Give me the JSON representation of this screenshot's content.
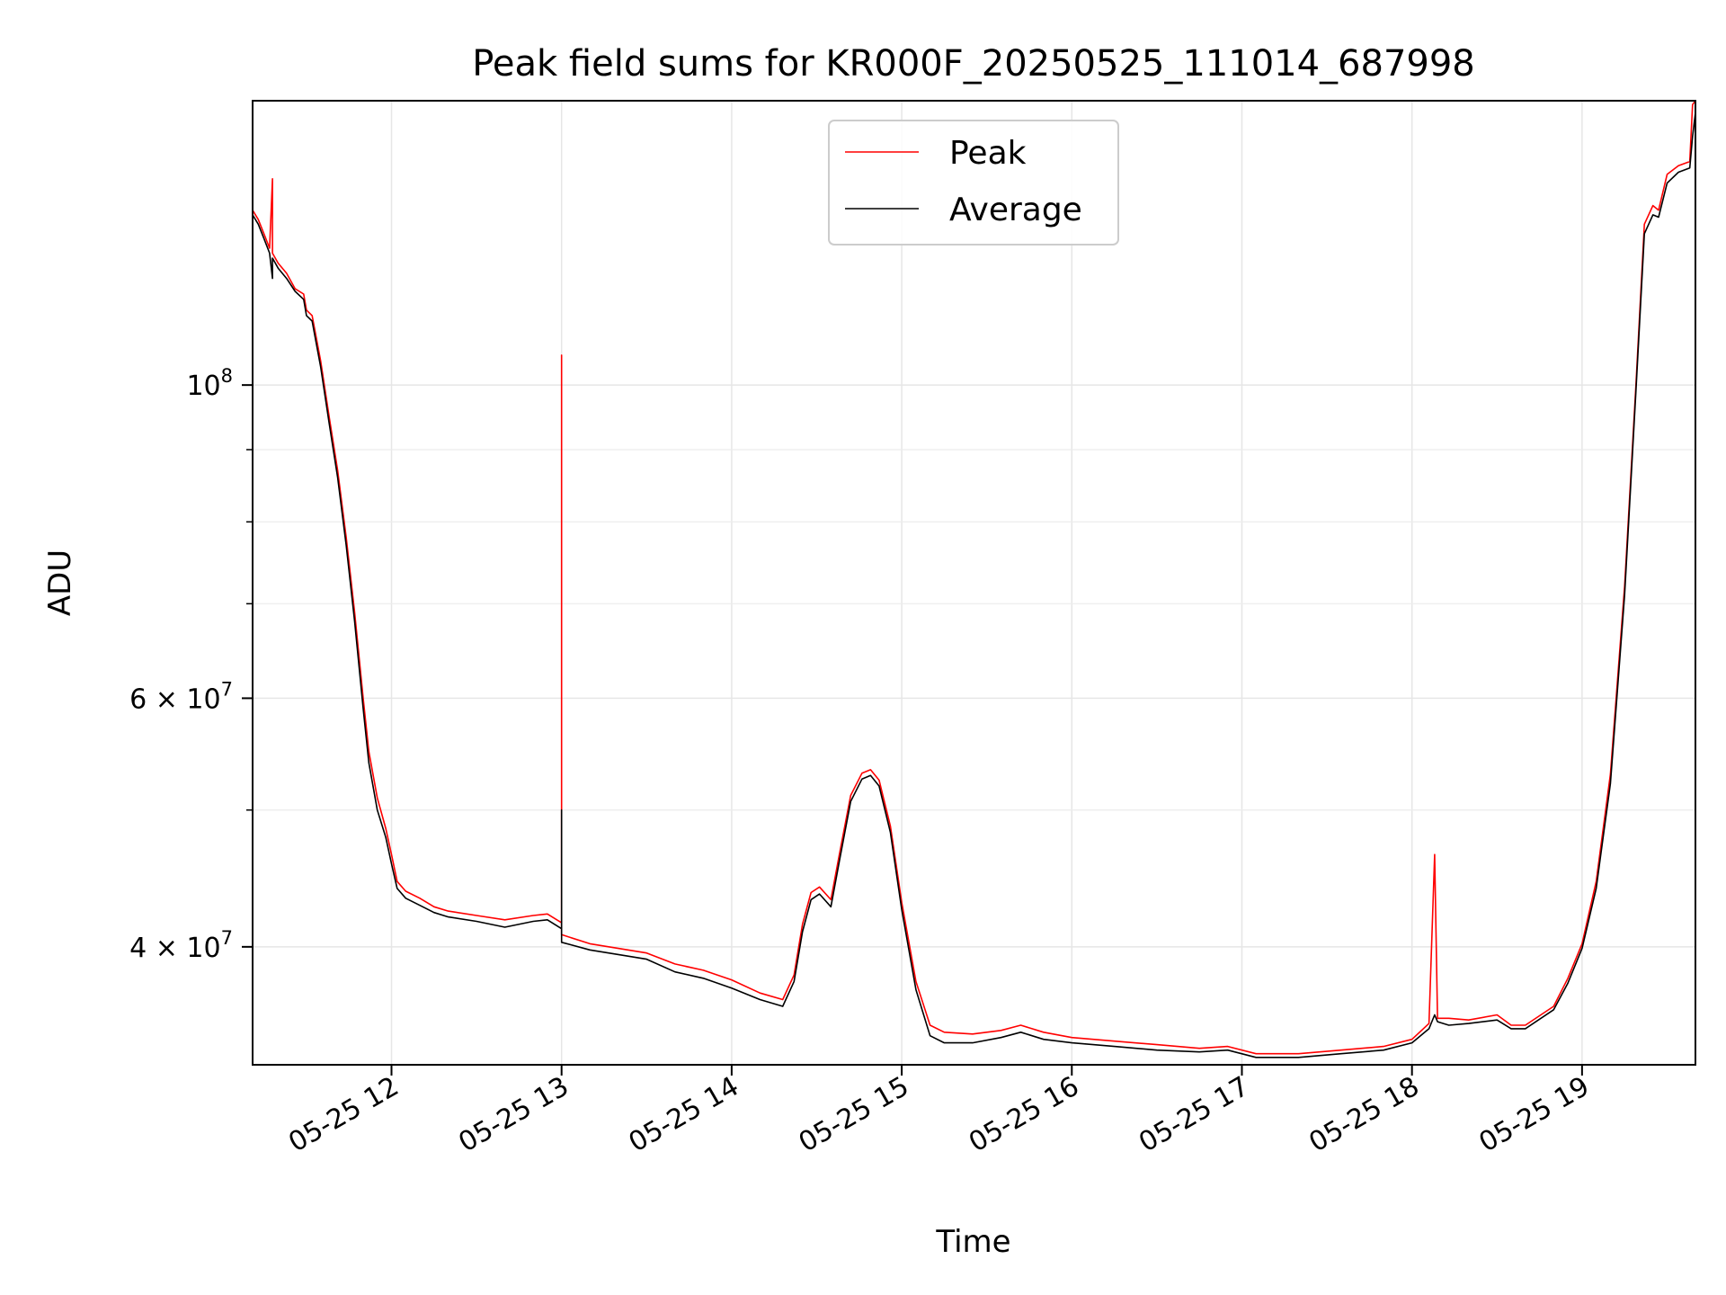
{
  "chart_data": {
    "type": "line",
    "title": "Peak field sums for KR000F_20250525_111014_687998",
    "xlabel": "Time",
    "ylabel": "ADU",
    "y_scale": "log",
    "xlim": [
      "2025-05-25T11:11",
      "2025-05-25T19:40"
    ],
    "ylim": [
      33000000,
      159000000
    ],
    "grid": true,
    "legend_position": "top-center",
    "x_ticks": [
      {
        "time": "2025-05-25T12:00",
        "label": "05-25 12"
      },
      {
        "time": "2025-05-25T13:00",
        "label": "05-25 13"
      },
      {
        "time": "2025-05-25T14:00",
        "label": "05-25 14"
      },
      {
        "time": "2025-05-25T15:00",
        "label": "05-25 15"
      },
      {
        "time": "2025-05-25T16:00",
        "label": "05-25 16"
      },
      {
        "time": "2025-05-25T17:00",
        "label": "05-25 17"
      },
      {
        "time": "2025-05-25T18:00",
        "label": "05-25 18"
      },
      {
        "time": "2025-05-25T19:00",
        "label": "05-25 19"
      }
    ],
    "y_major_ticks": [
      {
        "value": 40000000,
        "base": "4 × 10",
        "exp": "7"
      },
      {
        "value": 60000000,
        "base": "6 × 10",
        "exp": "7"
      },
      {
        "value": 100000000,
        "base": "10",
        "exp": "8"
      }
    ],
    "y_minor_ticks": [
      50000000,
      70000000,
      80000000,
      90000000
    ],
    "series": [
      {
        "name": "Peak",
        "color": "#ff0000",
        "points": [
          [
            "2025-05-25T11:11",
            133000000
          ],
          [
            "2025-05-25T11:13",
            131000000
          ],
          [
            "2025-05-25T11:15",
            128000000
          ],
          [
            "2025-05-25T11:17",
            125000000
          ],
          [
            "2025-05-25T11:18",
            140000000
          ],
          [
            "2025-05-25T11:18",
            124000000
          ],
          [
            "2025-05-25T11:20",
            122000000
          ],
          [
            "2025-05-25T11:23",
            120000000
          ],
          [
            "2025-05-25T11:26",
            117000000
          ],
          [
            "2025-05-25T11:29",
            116000000
          ],
          [
            "2025-05-25T11:30",
            113000000
          ],
          [
            "2025-05-25T11:32",
            112000000
          ],
          [
            "2025-05-25T11:35",
            104000000
          ],
          [
            "2025-05-25T11:38",
            95000000
          ],
          [
            "2025-05-25T11:41",
            87000000
          ],
          [
            "2025-05-25T11:44",
            78000000
          ],
          [
            "2025-05-25T11:47",
            69000000
          ],
          [
            "2025-05-25T11:50",
            60000000
          ],
          [
            "2025-05-25T11:52",
            55000000
          ],
          [
            "2025-05-25T11:55",
            51000000
          ],
          [
            "2025-05-25T11:58",
            48500000
          ],
          [
            "2025-05-25T12:00",
            46500000
          ],
          [
            "2025-05-25T12:02",
            44500000
          ],
          [
            "2025-05-25T12:05",
            43800000
          ],
          [
            "2025-05-25T12:10",
            43300000
          ],
          [
            "2025-05-25T12:15",
            42700000
          ],
          [
            "2025-05-25T12:20",
            42400000
          ],
          [
            "2025-05-25T12:30",
            42100000
          ],
          [
            "2025-05-25T12:40",
            41800000
          ],
          [
            "2025-05-25T12:50",
            42100000
          ],
          [
            "2025-05-25T12:55",
            42200000
          ],
          [
            "2025-05-25T13:00",
            41600000
          ],
          [
            "2025-05-25T13:00",
            105000000
          ],
          [
            "2025-05-25T13:00",
            40800000
          ],
          [
            "2025-05-25T13:10",
            40200000
          ],
          [
            "2025-05-25T13:20",
            39900000
          ],
          [
            "2025-05-25T13:30",
            39600000
          ],
          [
            "2025-05-25T13:40",
            38900000
          ],
          [
            "2025-05-25T13:50",
            38500000
          ],
          [
            "2025-05-25T14:00",
            37900000
          ],
          [
            "2025-05-25T14:10",
            37100000
          ],
          [
            "2025-05-25T14:18",
            36700000
          ],
          [
            "2025-05-25T14:22",
            38200000
          ],
          [
            "2025-05-25T14:25",
            41500000
          ],
          [
            "2025-05-25T14:28",
            43700000
          ],
          [
            "2025-05-25T14:31",
            44100000
          ],
          [
            "2025-05-25T14:35",
            43200000
          ],
          [
            "2025-05-25T14:38",
            46500000
          ],
          [
            "2025-05-25T14:42",
            51200000
          ],
          [
            "2025-05-25T14:46",
            53100000
          ],
          [
            "2025-05-25T14:49",
            53400000
          ],
          [
            "2025-05-25T14:52",
            52500000
          ],
          [
            "2025-05-25T14:56",
            48700000
          ],
          [
            "2025-05-25T15:00",
            43000000
          ],
          [
            "2025-05-25T15:05",
            37800000
          ],
          [
            "2025-05-25T15:10",
            35200000
          ],
          [
            "2025-05-25T15:15",
            34800000
          ],
          [
            "2025-05-25T15:25",
            34700000
          ],
          [
            "2025-05-25T15:35",
            34900000
          ],
          [
            "2025-05-25T15:42",
            35200000
          ],
          [
            "2025-05-25T15:50",
            34800000
          ],
          [
            "2025-05-25T16:00",
            34500000
          ],
          [
            "2025-05-25T16:15",
            34300000
          ],
          [
            "2025-05-25T16:30",
            34100000
          ],
          [
            "2025-05-25T16:45",
            33900000
          ],
          [
            "2025-05-25T16:55",
            34000000
          ],
          [
            "2025-05-25T17:05",
            33600000
          ],
          [
            "2025-05-25T17:20",
            33600000
          ],
          [
            "2025-05-25T17:35",
            33800000
          ],
          [
            "2025-05-25T17:50",
            34000000
          ],
          [
            "2025-05-25T18:00",
            34400000
          ],
          [
            "2025-05-25T18:06",
            35300000
          ],
          [
            "2025-05-25T18:08",
            46500000
          ],
          [
            "2025-05-25T18:09",
            35600000
          ],
          [
            "2025-05-25T18:13",
            35600000
          ],
          [
            "2025-05-25T18:20",
            35500000
          ],
          [
            "2025-05-25T18:30",
            35800000
          ],
          [
            "2025-05-25T18:35",
            35200000
          ],
          [
            "2025-05-25T18:40",
            35200000
          ],
          [
            "2025-05-25T18:50",
            36300000
          ],
          [
            "2025-05-25T18:55",
            38000000
          ],
          [
            "2025-05-25T19:00",
            40200000
          ],
          [
            "2025-05-25T19:05",
            44500000
          ],
          [
            "2025-05-25T19:10",
            53000000
          ],
          [
            "2025-05-25T19:15",
            72000000
          ],
          [
            "2025-05-25T19:19",
            100000000
          ],
          [
            "2025-05-25T19:22",
            130000000
          ],
          [
            "2025-05-25T19:25",
            134000000
          ],
          [
            "2025-05-25T19:27",
            133000000
          ],
          [
            "2025-05-25T19:30",
            141000000
          ],
          [
            "2025-05-25T19:34",
            143000000
          ],
          [
            "2025-05-25T19:38",
            144000000
          ],
          [
            "2025-05-25T19:39",
            158000000
          ],
          [
            "2025-05-25T19:40",
            159000000
          ]
        ]
      },
      {
        "name": "Average",
        "color": "#000000",
        "points": [
          [
            "2025-05-25T11:11",
            132000000
          ],
          [
            "2025-05-25T11:13",
            130000000
          ],
          [
            "2025-05-25T11:15",
            127000000
          ],
          [
            "2025-05-25T11:17",
            124000000
          ],
          [
            "2025-05-25T11:18",
            119000000
          ],
          [
            "2025-05-25T11:18",
            123000000
          ],
          [
            "2025-05-25T11:20",
            121000000
          ],
          [
            "2025-05-25T11:23",
            119000000
          ],
          [
            "2025-05-25T11:26",
            116500000
          ],
          [
            "2025-05-25T11:29",
            115000000
          ],
          [
            "2025-05-25T11:30",
            112000000
          ],
          [
            "2025-05-25T11:32",
            111000000
          ],
          [
            "2025-05-25T11:35",
            103000000
          ],
          [
            "2025-05-25T11:38",
            94000000
          ],
          [
            "2025-05-25T11:41",
            86000000
          ],
          [
            "2025-05-25T11:44",
            77000000
          ],
          [
            "2025-05-25T11:47",
            68000000
          ],
          [
            "2025-05-25T11:50",
            59000000
          ],
          [
            "2025-05-25T11:52",
            54000000
          ],
          [
            "2025-05-25T11:55",
            50000000
          ],
          [
            "2025-05-25T11:58",
            47800000
          ],
          [
            "2025-05-25T12:00",
            45800000
          ],
          [
            "2025-05-25T12:02",
            44000000
          ],
          [
            "2025-05-25T12:05",
            43300000
          ],
          [
            "2025-05-25T12:10",
            42800000
          ],
          [
            "2025-05-25T12:15",
            42300000
          ],
          [
            "2025-05-25T12:20",
            42000000
          ],
          [
            "2025-05-25T12:30",
            41700000
          ],
          [
            "2025-05-25T12:40",
            41300000
          ],
          [
            "2025-05-25T12:50",
            41700000
          ],
          [
            "2025-05-25T12:55",
            41800000
          ],
          [
            "2025-05-25T13:00",
            41200000
          ],
          [
            "2025-05-25T13:00",
            50000000
          ],
          [
            "2025-05-25T13:00",
            40300000
          ],
          [
            "2025-05-25T13:10",
            39800000
          ],
          [
            "2025-05-25T13:20",
            39500000
          ],
          [
            "2025-05-25T13:30",
            39200000
          ],
          [
            "2025-05-25T13:40",
            38400000
          ],
          [
            "2025-05-25T13:50",
            38000000
          ],
          [
            "2025-05-25T14:00",
            37400000
          ],
          [
            "2025-05-25T14:10",
            36700000
          ],
          [
            "2025-05-25T14:18",
            36300000
          ],
          [
            "2025-05-25T14:22",
            37800000
          ],
          [
            "2025-05-25T14:25",
            41000000
          ],
          [
            "2025-05-25T14:28",
            43200000
          ],
          [
            "2025-05-25T14:31",
            43600000
          ],
          [
            "2025-05-25T14:35",
            42700000
          ],
          [
            "2025-05-25T14:38",
            46000000
          ],
          [
            "2025-05-25T14:42",
            50700000
          ],
          [
            "2025-05-25T14:46",
            52600000
          ],
          [
            "2025-05-25T14:49",
            52900000
          ],
          [
            "2025-05-25T14:52",
            52000000
          ],
          [
            "2025-05-25T14:56",
            48200000
          ],
          [
            "2025-05-25T15:00",
            42500000
          ],
          [
            "2025-05-25T15:05",
            37300000
          ],
          [
            "2025-05-25T15:10",
            34600000
          ],
          [
            "2025-05-25T15:15",
            34200000
          ],
          [
            "2025-05-25T15:25",
            34200000
          ],
          [
            "2025-05-25T15:35",
            34500000
          ],
          [
            "2025-05-25T15:42",
            34800000
          ],
          [
            "2025-05-25T15:50",
            34400000
          ],
          [
            "2025-05-25T16:00",
            34200000
          ],
          [
            "2025-05-25T16:15",
            34000000
          ],
          [
            "2025-05-25T16:30",
            33800000
          ],
          [
            "2025-05-25T16:45",
            33700000
          ],
          [
            "2025-05-25T16:55",
            33800000
          ],
          [
            "2025-05-25T17:05",
            33400000
          ],
          [
            "2025-05-25T17:20",
            33400000
          ],
          [
            "2025-05-25T17:35",
            33600000
          ],
          [
            "2025-05-25T17:50",
            33800000
          ],
          [
            "2025-05-25T18:00",
            34200000
          ],
          [
            "2025-05-25T18:06",
            35000000
          ],
          [
            "2025-05-25T18:08",
            35800000
          ],
          [
            "2025-05-25T18:09",
            35400000
          ],
          [
            "2025-05-25T18:13",
            35200000
          ],
          [
            "2025-05-25T18:20",
            35300000
          ],
          [
            "2025-05-25T18:30",
            35500000
          ],
          [
            "2025-05-25T18:35",
            35000000
          ],
          [
            "2025-05-25T18:40",
            35000000
          ],
          [
            "2025-05-25T18:50",
            36100000
          ],
          [
            "2025-05-25T18:55",
            37700000
          ],
          [
            "2025-05-25T19:00",
            39900000
          ],
          [
            "2025-05-25T19:05",
            44000000
          ],
          [
            "2025-05-25T19:10",
            52200000
          ],
          [
            "2025-05-25T19:15",
            71000000
          ],
          [
            "2025-05-25T19:19",
            99000000
          ],
          [
            "2025-05-25T19:22",
            128000000
          ],
          [
            "2025-05-25T19:25",
            132000000
          ],
          [
            "2025-05-25T19:27",
            131500000
          ],
          [
            "2025-05-25T19:30",
            139000000
          ],
          [
            "2025-05-25T19:34",
            141500000
          ],
          [
            "2025-05-25T19:38",
            142500000
          ],
          [
            "2025-05-25T19:39",
            150000000
          ],
          [
            "2025-05-25T19:40",
            156000000
          ]
        ]
      }
    ]
  }
}
